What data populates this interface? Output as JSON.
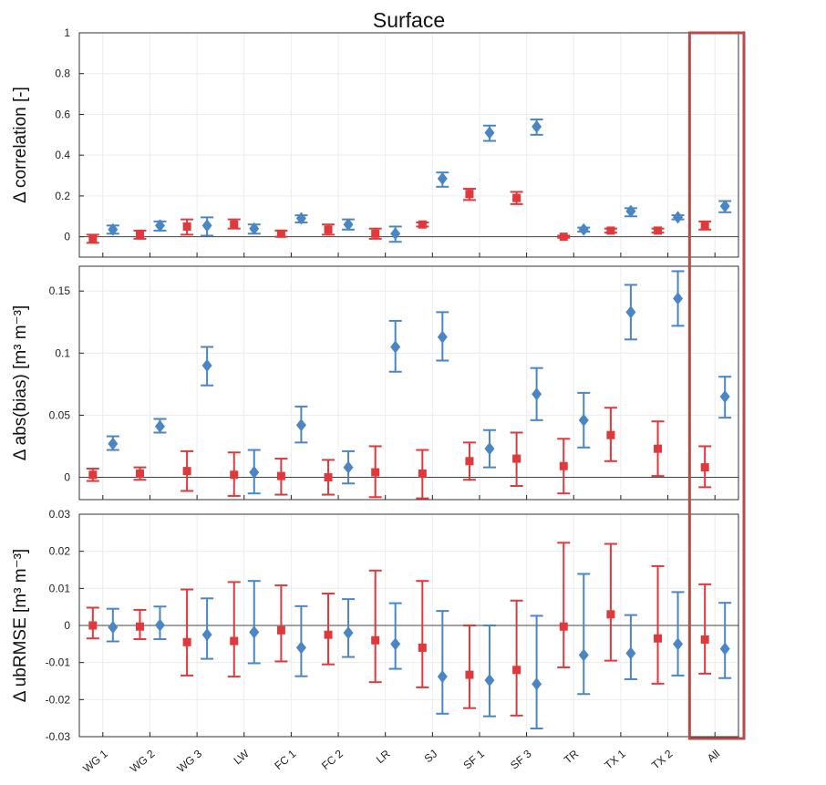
{
  "colors": {
    "red": "#e0383b",
    "blue": "#4a86c5",
    "highlight_box": "#b84a4a",
    "grid": "#ececec",
    "axis": "#222222"
  },
  "chart_data": [
    {
      "type": "scatter",
      "title": "Surface",
      "ylabel": "Δ correlation [-]",
      "categories": [
        "WG 1",
        "WG 2",
        "WG 3",
        "LW",
        "FC 1",
        "FC 2",
        "LR",
        "SJ",
        "SF 1",
        "SF 3",
        "TR",
        "TX 1",
        "TX 2",
        "All"
      ],
      "ylim": [
        -0.1,
        1
      ],
      "yticks": [
        0,
        0.2,
        0.4,
        0.6,
        0.8,
        1
      ],
      "yticklabels": [
        "0",
        "0.2",
        "0.4",
        "0.6",
        "0.8",
        "1"
      ],
      "zero_line": true,
      "grid": true,
      "series": [
        {
          "color_key": "red",
          "marker": "square",
          "values": [
            -0.01,
            0.01,
            0.05,
            0.06,
            0.015,
            0.035,
            0.015,
            0.06,
            0.21,
            0.19,
            0.0,
            0.03,
            0.03,
            0.055
          ],
          "lower": [
            -0.03,
            -0.01,
            0.01,
            0.04,
            0.0,
            0.01,
            -0.01,
            0.05,
            0.18,
            0.16,
            -0.005,
            0.02,
            0.02,
            0.035
          ],
          "upper": [
            0.01,
            0.03,
            0.085,
            0.085,
            0.03,
            0.06,
            0.04,
            0.07,
            0.235,
            0.22,
            0.005,
            0.04,
            0.04,
            0.075
          ]
        },
        {
          "color_key": "blue",
          "marker": "diamond",
          "values": [
            0.035,
            0.055,
            0.055,
            0.04,
            0.09,
            0.06,
            0.015,
            0.285,
            0.51,
            0.54,
            0.035,
            0.125,
            0.095,
            0.15
          ],
          "lower": [
            0.015,
            0.03,
            0.005,
            0.015,
            0.07,
            0.035,
            -0.025,
            0.245,
            0.47,
            0.5,
            0.025,
            0.1,
            0.085,
            0.12
          ],
          "upper": [
            0.055,
            0.075,
            0.095,
            0.06,
            0.105,
            0.085,
            0.05,
            0.315,
            0.545,
            0.575,
            0.045,
            0.14,
            0.105,
            0.175
          ]
        }
      ]
    },
    {
      "type": "scatter",
      "ylabel": "Δ abs(bias) [m³ m⁻³]",
      "categories": [
        "WG 1",
        "WG 2",
        "WG 3",
        "LW",
        "FC 1",
        "FC 2",
        "LR",
        "SJ",
        "SF 1",
        "SF 3",
        "TR",
        "TX 1",
        "TX 2",
        "All"
      ],
      "ylim": [
        -0.018,
        0.17
      ],
      "yticks": [
        0,
        0.05,
        0.1,
        0.15
      ],
      "yticklabels": [
        "0",
        "0.05",
        "0.1",
        "0.15"
      ],
      "zero_line": true,
      "grid": true,
      "series": [
        {
          "color_key": "red",
          "marker": "square",
          "values": [
            0.002,
            0.003,
            0.005,
            0.002,
            0.001,
            0.0,
            0.004,
            0.003,
            0.013,
            0.015,
            0.009,
            0.034,
            0.023,
            0.008
          ],
          "lower": [
            -0.003,
            -0.002,
            -0.011,
            -0.015,
            -0.014,
            -0.014,
            -0.016,
            -0.017,
            -0.002,
            -0.007,
            -0.013,
            0.013,
            0.001,
            -0.008
          ],
          "upper": [
            0.007,
            0.008,
            0.021,
            0.02,
            0.015,
            0.014,
            0.025,
            0.022,
            0.028,
            0.036,
            0.031,
            0.056,
            0.045,
            0.025
          ]
        },
        {
          "color_key": "blue",
          "marker": "diamond",
          "values": [
            0.027,
            0.041,
            0.09,
            0.004,
            0.042,
            0.008,
            0.105,
            0.113,
            0.023,
            0.067,
            0.046,
            0.133,
            0.144,
            0.065
          ],
          "lower": [
            0.022,
            0.036,
            0.074,
            -0.013,
            0.028,
            -0.005,
            0.085,
            0.094,
            0.008,
            0.046,
            0.024,
            0.111,
            0.122,
            0.048
          ],
          "upper": [
            0.033,
            0.047,
            0.105,
            0.022,
            0.057,
            0.021,
            0.126,
            0.133,
            0.038,
            0.088,
            0.068,
            0.155,
            0.166,
            0.081
          ]
        }
      ]
    },
    {
      "type": "scatter",
      "ylabel": "Δ ubRMSE [m³ m⁻³]",
      "categories": [
        "WG 1",
        "WG 2",
        "WG 3",
        "LW",
        "FC 1",
        "FC 2",
        "LR",
        "SJ",
        "SF 1",
        "SF 3",
        "TR",
        "TX 1",
        "TX 2",
        "All"
      ],
      "ylim": [
        -0.03,
        0.03
      ],
      "yticks": [
        -0.03,
        -0.02,
        -0.01,
        0,
        0.01,
        0.02,
        0.03
      ],
      "yticklabels": [
        "-0.03",
        "-0.02",
        "-0.01",
        "0",
        "0.01",
        "0.02",
        "0.03"
      ],
      "zero_line": true,
      "grid": true,
      "series": [
        {
          "color_key": "red",
          "marker": "square",
          "values": [
            0.0,
            -0.0003,
            -0.0045,
            -0.0042,
            -0.0013,
            -0.0025,
            -0.004,
            -0.006,
            -0.0133,
            -0.012,
            -0.0003,
            0.003,
            -0.0035,
            -0.0038
          ],
          "lower": [
            -0.0035,
            -0.0037,
            -0.0135,
            -0.0138,
            -0.0097,
            -0.0105,
            -0.0153,
            -0.0167,
            -0.0223,
            -0.0243,
            -0.0113,
            -0.0095,
            -0.0157,
            -0.013
          ],
          "upper": [
            0.0048,
            0.0042,
            0.0097,
            0.0117,
            0.0108,
            0.0086,
            0.0148,
            0.012,
            0.0,
            0.0067,
            0.0223,
            0.022,
            0.016,
            0.0111
          ]
        },
        {
          "color_key": "blue",
          "marker": "diamond",
          "values": [
            -0.0005,
            0.0001,
            -0.0025,
            -0.0018,
            -0.006,
            -0.002,
            -0.005,
            -0.0138,
            -0.0148,
            -0.0158,
            -0.008,
            -0.0075,
            -0.005,
            -0.0063
          ],
          "lower": [
            -0.0043,
            -0.0037,
            -0.009,
            -0.0102,
            -0.0137,
            -0.0085,
            -0.0117,
            -0.0238,
            -0.0245,
            -0.0278,
            -0.0185,
            -0.0145,
            -0.0135,
            -0.0142
          ],
          "upper": [
            0.0045,
            0.0051,
            0.0073,
            0.012,
            0.0052,
            0.0071,
            0.006,
            0.0039,
            0.0,
            0.0026,
            0.0139,
            0.0028,
            0.009,
            0.0061
          ]
        }
      ]
    }
  ]
}
